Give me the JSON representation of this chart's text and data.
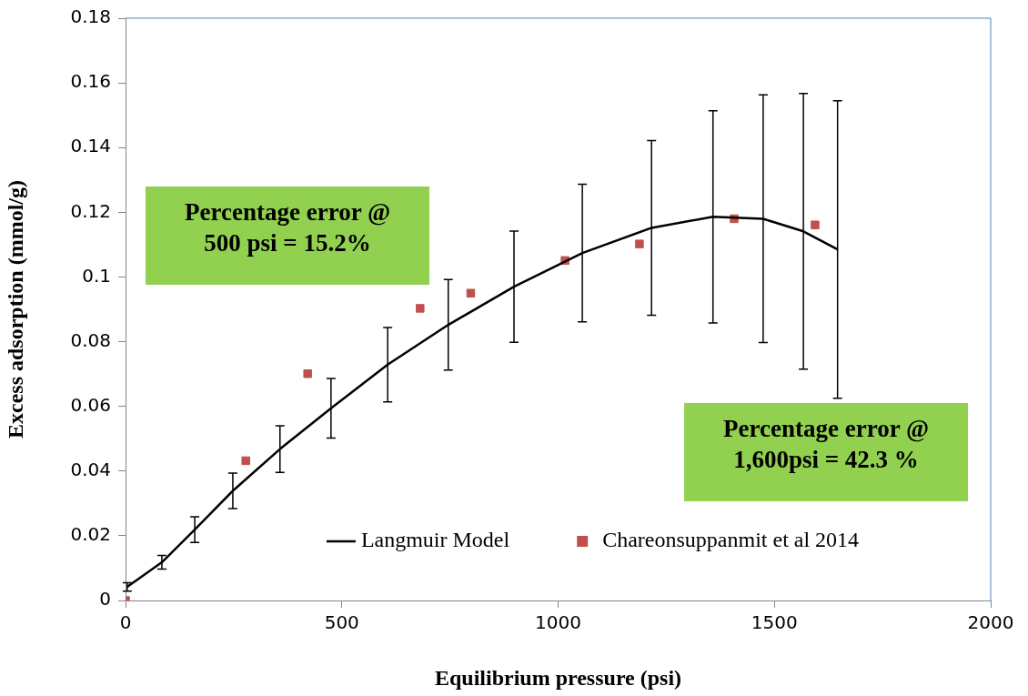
{
  "chart_data": {
    "type": "line",
    "xlabel": "Equilibrium pressure (psi)",
    "ylabel": "Excess adsorption (mmol/g)",
    "xlim": [
      0,
      2000
    ],
    "xticks": [
      0,
      500,
      1000,
      1500,
      2000
    ],
    "ylim": [
      0,
      0.18
    ],
    "yticks": [
      0,
      0.02,
      0.04,
      0.06,
      0.08,
      0.1,
      0.12,
      0.14,
      0.16,
      0.18
    ],
    "grid": false,
    "legend": "bottom",
    "annotations": [
      "Percentage error @ 500 psi = 15.2%",
      "Percentage error @ 1,600psi = 42.3 %"
    ],
    "series": [
      {
        "name": "Langmuir Model",
        "color": "#000000",
        "marker": "none",
        "x": [
          4,
          84,
          160,
          248,
          357,
          475,
          606,
          746,
          898,
          1056,
          1216,
          1358,
          1474,
          1567,
          1646
        ],
        "values": [
          0.0042,
          0.0118,
          0.0219,
          0.0339,
          0.0468,
          0.0594,
          0.0729,
          0.0852,
          0.097,
          0.1074,
          0.1152,
          0.1186,
          0.118,
          0.1141,
          0.1085
        ],
        "errors": [
          0.0013,
          0.0021,
          0.004,
          0.0055,
          0.0072,
          0.0092,
          0.0115,
          0.014,
          0.0172,
          0.0213,
          0.027,
          0.0328,
          0.0383,
          0.0426,
          0.046
        ]
      },
      {
        "name": "Chareonsuppanmit et al 2014",
        "type": "scatter",
        "color": "#c0504d",
        "marker": "square",
        "x": [
          0,
          278,
          421,
          681,
          798,
          1016,
          1188,
          1407,
          1594
        ],
        "values": [
          0,
          0.0432,
          0.0701,
          0.0903,
          0.095,
          0.1051,
          0.1102,
          0.118,
          0.1161
        ]
      }
    ]
  }
}
